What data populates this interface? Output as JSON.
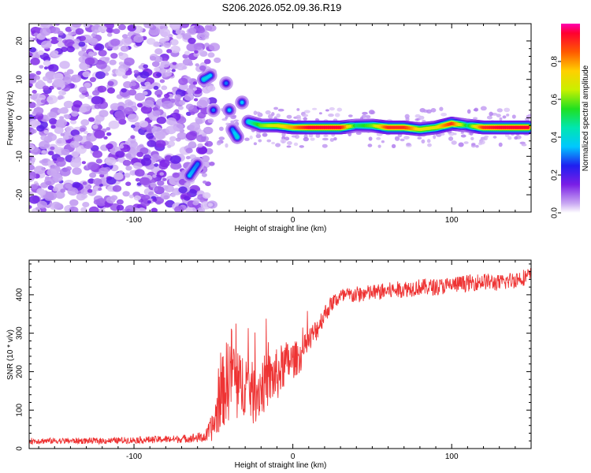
{
  "title": "S206.2026.052.09.36.R19",
  "chart_data": [
    {
      "type": "heatmap",
      "xlabel": "Height of straight line (km)",
      "ylabel": "Frequency (Hz)",
      "xlim": [
        -166,
        150
      ],
      "ylim": [
        -24.5,
        24.5
      ],
      "xticks": [
        -100,
        0,
        100
      ],
      "yticks": [
        -20,
        -10,
        0,
        10,
        20
      ],
      "colorbar": {
        "label": "Normalized spectral amplitude",
        "range": [
          0.0,
          1.0
        ],
        "ticks": [
          0.0,
          0.2,
          0.4,
          0.6,
          0.8
        ]
      },
      "ridge": {
        "description_points_km_hz_amp": [
          [
            -65,
            -15,
            0.35
          ],
          [
            -60,
            -12,
            0.3
          ],
          [
            -56,
            10,
            0.4
          ],
          [
            -52,
            11,
            0.35
          ],
          [
            -50,
            2,
            0.3
          ],
          [
            -42,
            9,
            0.3
          ],
          [
            -40,
            2,
            0.35
          ],
          [
            -38,
            -3,
            0.3
          ],
          [
            -35,
            -5,
            0.4
          ],
          [
            -32,
            4,
            0.35
          ],
          [
            -28,
            -1,
            0.4
          ],
          [
            -20,
            -2,
            0.6
          ],
          [
            -10,
            -2,
            0.7
          ],
          [
            0,
            -2.5,
            0.8
          ],
          [
            10,
            -2.5,
            0.95
          ],
          [
            20,
            -2.5,
            0.95
          ],
          [
            30,
            -2.5,
            0.95
          ],
          [
            40,
            -2,
            0.5
          ],
          [
            50,
            -2,
            0.6
          ],
          [
            60,
            -2.5,
            0.9
          ],
          [
            70,
            -2.5,
            0.9
          ],
          [
            80,
            -3,
            0.7
          ],
          [
            90,
            -2.5,
            0.7
          ],
          [
            100,
            -1.5,
            0.9
          ],
          [
            110,
            -2,
            0.5
          ],
          [
            120,
            -2.5,
            0.9
          ],
          [
            130,
            -2.5,
            0.95
          ],
          [
            140,
            -2.5,
            0.95
          ],
          [
            148,
            -2.5,
            0.95
          ]
        ],
        "noise_region_km": [
          -166,
          -55
        ]
      }
    },
    {
      "type": "line",
      "xlabel": "Height of straight line (km)",
      "ylabel": "SNR (10 * v/v)",
      "xlim": [
        -166,
        150
      ],
      "ylim": [
        0,
        490
      ],
      "xticks": [
        -100,
        0,
        100
      ],
      "yticks": [
        0,
        100,
        200,
        300,
        400
      ],
      "color": "#ee3333",
      "series": [
        {
          "name": "SNR",
          "x": [
            -166,
            -120,
            -70,
            -55,
            -50,
            -45,
            -40,
            -38,
            -35,
            -30,
            -25,
            -20,
            -15,
            -10,
            -5,
            0,
            5,
            10,
            15,
            20,
            25,
            30,
            40,
            50,
            60,
            70,
            80,
            90,
            100,
            110,
            120,
            130,
            140,
            150
          ],
          "y": [
            20,
            20,
            25,
            30,
            60,
            140,
            190,
            220,
            150,
            180,
            140,
            160,
            180,
            190,
            220,
            230,
            240,
            280,
            310,
            350,
            380,
            395,
            400,
            405,
            410,
            415,
            420,
            420,
            425,
            430,
            435,
            430,
            440,
            450
          ],
          "noise": [
            8,
            8,
            10,
            15,
            40,
            90,
            120,
            110,
            90,
            90,
            80,
            80,
            70,
            70,
            60,
            50,
            40,
            35,
            30,
            25,
            22,
            22,
            22,
            22,
            22,
            22,
            22,
            22,
            22,
            22,
            22,
            22,
            22,
            22
          ]
        }
      ]
    }
  ]
}
